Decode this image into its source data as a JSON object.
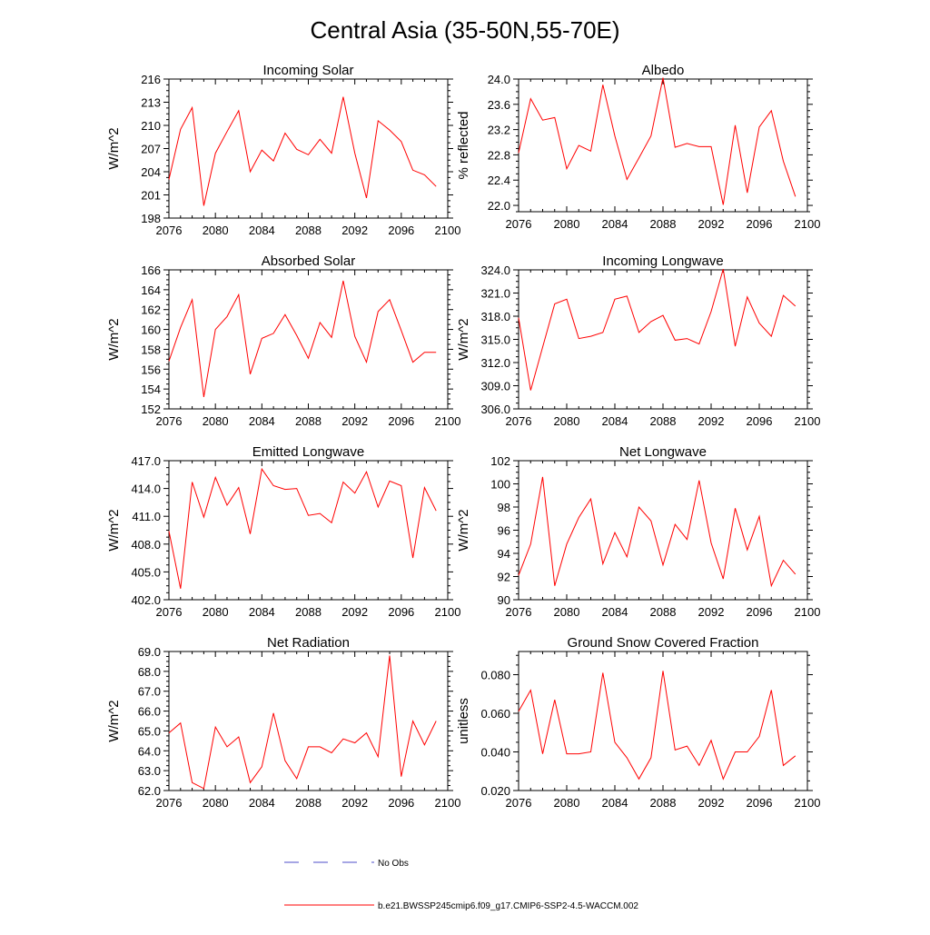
{
  "page": {
    "title": "Central Asia (35-50N,55-70E)"
  },
  "legend": {
    "entries": [
      {
        "label": "No Obs",
        "color": "#4c4cc8",
        "style": "dashed"
      },
      {
        "label": "b.e21.BWSSP245cmip6.f09_g17.CMIP6-SSP2-4.5-WACCM.002",
        "color": "#ff0000",
        "style": "solid"
      }
    ]
  },
  "chart_data": [
    {
      "type": "line",
      "title": "Incoming Solar",
      "xlabel": "",
      "ylabel": "W/m^2",
      "xlim": [
        2076,
        2100
      ],
      "ylim": [
        198,
        216
      ],
      "xticks": [
        "2076",
        "2080",
        "2084",
        "2088",
        "2092",
        "2096",
        "2100"
      ],
      "yticks": [
        "198",
        "201",
        "204",
        "207",
        "210",
        "213",
        "216"
      ],
      "series": [
        {
          "color": "#ff0000",
          "x": [
            2076,
            2077,
            2078,
            2079,
            2080,
            2081,
            2082,
            2083,
            2084,
            2085,
            2086,
            2087,
            2088,
            2089,
            2090,
            2091,
            2092,
            2093,
            2094,
            2095,
            2096,
            2097,
            2098,
            2099
          ],
          "y": [
            203.0,
            209.5,
            212.3,
            199.6,
            206.4,
            209.2,
            211.9,
            204.0,
            206.8,
            205.4,
            209.0,
            206.9,
            206.2,
            208.2,
            206.4,
            213.7,
            206.4,
            200.6,
            210.6,
            209.4,
            207.9,
            204.2,
            203.6,
            202.1
          ]
        }
      ]
    },
    {
      "type": "line",
      "title": "Albedo",
      "xlabel": "",
      "ylabel": "% reflected",
      "xlim": [
        2076,
        2100
      ],
      "ylim": [
        21.9,
        24.0
      ],
      "xticks": [
        "2076",
        "2080",
        "2084",
        "2088",
        "2092",
        "2096",
        "2100"
      ],
      "yticks": [
        "22.0",
        "22.4",
        "22.8",
        "23.2",
        "23.6",
        "24.0"
      ],
      "series": [
        {
          "color": "#ff0000",
          "x": [
            2076,
            2077,
            2078,
            2079,
            2080,
            2081,
            2082,
            2083,
            2084,
            2085,
            2086,
            2087,
            2088,
            2089,
            2090,
            2091,
            2092,
            2093,
            2094,
            2095,
            2096,
            2097,
            2098,
            2099
          ],
          "y": [
            22.83,
            23.69,
            23.35,
            23.39,
            22.58,
            22.95,
            22.86,
            23.91,
            23.1,
            22.41,
            22.75,
            23.1,
            24.02,
            22.92,
            22.98,
            22.93,
            22.93,
            22.01,
            23.27,
            22.2,
            23.24,
            23.5,
            22.7,
            22.14
          ]
        }
      ]
    },
    {
      "type": "line",
      "title": "Absorbed Solar",
      "xlabel": "",
      "ylabel": "W/m^2",
      "xlim": [
        2076,
        2100
      ],
      "ylim": [
        152,
        166
      ],
      "xticks": [
        "2076",
        "2080",
        "2084",
        "2088",
        "2092",
        "2096",
        "2100"
      ],
      "yticks": [
        "152",
        "154",
        "156",
        "158",
        "160",
        "162",
        "164",
        "166"
      ],
      "series": [
        {
          "color": "#ff0000",
          "x": [
            2076,
            2077,
            2078,
            2079,
            2080,
            2081,
            2082,
            2083,
            2084,
            2085,
            2086,
            2087,
            2088,
            2089,
            2090,
            2091,
            2092,
            2093,
            2094,
            2095,
            2096,
            2097,
            2098,
            2099
          ],
          "y": [
            156.8,
            160.2,
            163.0,
            153.2,
            160.0,
            161.3,
            163.5,
            155.5,
            159.1,
            159.6,
            161.5,
            159.4,
            157.1,
            160.7,
            159.2,
            164.9,
            159.3,
            156.7,
            161.8,
            163.0,
            159.9,
            156.7,
            157.7,
            157.7
          ]
        }
      ]
    },
    {
      "type": "line",
      "title": "Incoming Longwave",
      "xlabel": "",
      "ylabel": "W/m^2",
      "xlim": [
        2076,
        2100
      ],
      "ylim": [
        306.0,
        324.0
      ],
      "xticks": [
        "2076",
        "2080",
        "2084",
        "2088",
        "2092",
        "2096",
        "2100"
      ],
      "yticks": [
        "306.0",
        "309.0",
        "312.0",
        "315.0",
        "318.0",
        "321.0",
        "324.0"
      ],
      "series": [
        {
          "color": "#ff0000",
          "x": [
            2076,
            2077,
            2078,
            2079,
            2080,
            2081,
            2082,
            2083,
            2084,
            2085,
            2086,
            2087,
            2088,
            2089,
            2090,
            2091,
            2092,
            2093,
            2094,
            2095,
            2096,
            2097,
            2098,
            2099
          ],
          "y": [
            317.8,
            308.4,
            314.0,
            319.6,
            320.2,
            315.1,
            315.4,
            315.9,
            320.2,
            320.6,
            315.9,
            317.3,
            318.1,
            314.9,
            315.1,
            314.4,
            318.6,
            324.1,
            314.1,
            320.5,
            317.1,
            315.4,
            320.7,
            319.3
          ]
        }
      ]
    },
    {
      "type": "line",
      "title": "Emitted Longwave",
      "xlabel": "",
      "ylabel": "W/m^2",
      "xlim": [
        2076,
        2100
      ],
      "ylim": [
        402.0,
        417.0
      ],
      "xticks": [
        "2076",
        "2080",
        "2084",
        "2088",
        "2092",
        "2096",
        "2100"
      ],
      "yticks": [
        "402.0",
        "405.0",
        "408.0",
        "411.0",
        "414.0",
        "417.0"
      ],
      "series": [
        {
          "color": "#ff0000",
          "x": [
            2076,
            2077,
            2078,
            2079,
            2080,
            2081,
            2082,
            2083,
            2084,
            2085,
            2086,
            2087,
            2088,
            2089,
            2090,
            2091,
            2092,
            2093,
            2094,
            2095,
            2096,
            2097,
            2098,
            2099
          ],
          "y": [
            409.4,
            403.2,
            414.7,
            410.9,
            415.2,
            412.2,
            414.1,
            409.1,
            416.1,
            414.3,
            413.9,
            414.0,
            411.1,
            411.3,
            410.3,
            414.7,
            413.5,
            415.8,
            412.0,
            414.8,
            414.3,
            406.5,
            414.1,
            411.6
          ]
        }
      ]
    },
    {
      "type": "line",
      "title": "Net Longwave",
      "xlabel": "",
      "ylabel": "W/m^2",
      "xlim": [
        2076,
        2100
      ],
      "ylim": [
        90,
        102
      ],
      "xticks": [
        "2076",
        "2080",
        "2084",
        "2088",
        "2092",
        "2096",
        "2100"
      ],
      "yticks": [
        "90",
        "92",
        "94",
        "96",
        "98",
        "100",
        "102"
      ],
      "series": [
        {
          "color": "#ff0000",
          "x": [
            2076,
            2077,
            2078,
            2079,
            2080,
            2081,
            2082,
            2083,
            2084,
            2085,
            2086,
            2087,
            2088,
            2089,
            2090,
            2091,
            2092,
            2093,
            2094,
            2095,
            2096,
            2097,
            2098,
            2099
          ],
          "y": [
            92.1,
            94.8,
            100.6,
            91.2,
            94.8,
            97.1,
            98.7,
            93.1,
            95.8,
            93.7,
            98.0,
            96.8,
            93.0,
            96.5,
            95.2,
            100.3,
            94.9,
            91.8,
            97.9,
            94.3,
            97.2,
            91.2,
            93.4,
            92.2
          ]
        }
      ]
    },
    {
      "type": "line",
      "title": "Net Radiation",
      "xlabel": "",
      "ylabel": "W/m^2",
      "xlim": [
        2076,
        2100
      ],
      "ylim": [
        62.0,
        69.0
      ],
      "xticks": [
        "2076",
        "2080",
        "2084",
        "2088",
        "2092",
        "2096",
        "2100"
      ],
      "yticks": [
        "62.0",
        "63.0",
        "64.0",
        "65.0",
        "66.0",
        "67.0",
        "68.0",
        "69.0"
      ],
      "series": [
        {
          "color": "#ff0000",
          "x": [
            2076,
            2077,
            2078,
            2079,
            2080,
            2081,
            2082,
            2083,
            2084,
            2085,
            2086,
            2087,
            2088,
            2089,
            2090,
            2091,
            2092,
            2093,
            2094,
            2095,
            2096,
            2097,
            2098,
            2099
          ],
          "y": [
            64.9,
            65.4,
            62.4,
            62.1,
            65.2,
            64.2,
            64.7,
            62.4,
            63.2,
            65.9,
            63.5,
            62.6,
            64.2,
            64.2,
            63.9,
            64.6,
            64.4,
            64.9,
            63.7,
            68.8,
            62.7,
            65.5,
            64.3,
            65.5
          ]
        }
      ]
    },
    {
      "type": "line",
      "title": "Ground Snow Covered Fraction",
      "xlabel": "",
      "ylabel": "unitless",
      "xlim": [
        2076,
        2100
      ],
      "ylim": [
        0.02,
        0.092
      ],
      "xticks": [
        "2076",
        "2080",
        "2084",
        "2088",
        "2092",
        "2096",
        "2100"
      ],
      "yticks": [
        "0.020",
        "0.040",
        "0.060",
        "0.080"
      ],
      "series": [
        {
          "color": "#ff0000",
          "x": [
            2076,
            2077,
            2078,
            2079,
            2080,
            2081,
            2082,
            2083,
            2084,
            2085,
            2086,
            2087,
            2088,
            2089,
            2090,
            2091,
            2092,
            2093,
            2094,
            2095,
            2096,
            2097,
            2098,
            2099
          ],
          "y": [
            0.061,
            0.072,
            0.039,
            0.067,
            0.039,
            0.039,
            0.04,
            0.081,
            0.045,
            0.037,
            0.026,
            0.037,
            0.082,
            0.041,
            0.043,
            0.033,
            0.046,
            0.026,
            0.04,
            0.04,
            0.048,
            0.072,
            0.033,
            0.038
          ]
        }
      ]
    }
  ]
}
